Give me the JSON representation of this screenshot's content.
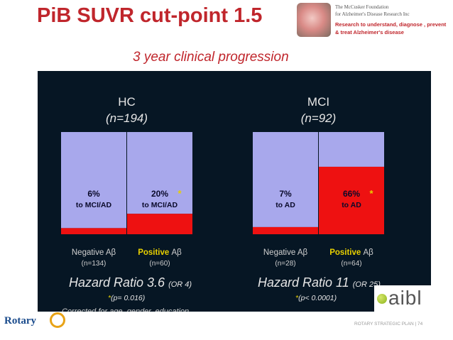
{
  "title": "PiB SUVR cut-point 1.5",
  "subtitle": "3 year clinical progression",
  "logo": {
    "line1": "The McCusker Foundation",
    "line2": "for Alzheimer's Disease Research Inc",
    "line3": "Research to understand, diagnose , prevent",
    "line4": "& treat Alzheimer's disease"
  },
  "colors": {
    "negative": "#a8a8ec",
    "positive": "#ee1111",
    "background": "#061624",
    "accent": "#c0262c",
    "gold": "#e8d000"
  },
  "chart_data": [
    {
      "type": "bar",
      "stacked": true,
      "group_label": "HC",
      "group_n": "(n=194)",
      "ylim": [
        0,
        100
      ],
      "hazard_ratio": "Hazard Ratio 3.6",
      "odds_ratio": "(OR 4)",
      "p_star": "*",
      "p_value": "(p= 0.016)",
      "bars": [
        {
          "category": "Negative Aβ",
          "n": "(n=134)",
          "progressed_pct": 6,
          "value_label": "6%",
          "outcome_label": "to MCI/AD",
          "star": ""
        },
        {
          "category": "Positive Aβ",
          "n": "(n=60)",
          "progressed_pct": 20,
          "value_label": "20%",
          "outcome_label": "to MCI/AD",
          "star": "*"
        }
      ]
    },
    {
      "type": "bar",
      "stacked": true,
      "group_label": "MCI",
      "group_n": "(n=92)",
      "ylim": [
        0,
        100
      ],
      "hazard_ratio": "Hazard Ratio 11",
      "odds_ratio": "(OR 25)",
      "p_star": "*",
      "p_value": "(p< 0.0001)",
      "bars": [
        {
          "category": "Negative Aβ",
          "n": "(n=28)",
          "progressed_pct": 7,
          "value_label": "7%",
          "outcome_label": "to AD",
          "star": ""
        },
        {
          "category": "Positive Aβ",
          "n": "(n=64)",
          "progressed_pct": 66,
          "value_label": "66%",
          "outcome_label": "to AD",
          "star": "*"
        }
      ]
    }
  ],
  "footnote": "Corrected for age, gender, education",
  "footer": {
    "org": "Rotary",
    "plan": "ROTARY STRATEGIC PLAN | 74"
  },
  "aibl": "aibl"
}
